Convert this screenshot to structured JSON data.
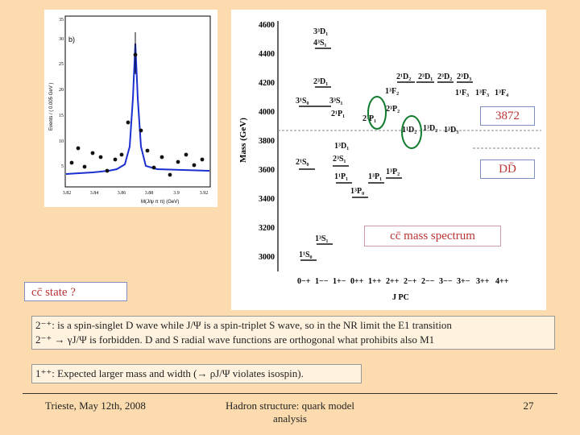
{
  "left_plot": {
    "panel_label": "b)",
    "y_axis_label": "Events / ( 0.005 GeV )",
    "x_axis_label": "M(J/ψ π π) (GeV)",
    "y_ticks": [
      "5",
      "10",
      "15",
      "20",
      "25",
      "30",
      "35"
    ],
    "x_ticks": [
      "3.82",
      "3.84",
      "3.86",
      "3.88",
      "3.9",
      "3.92"
    ]
  },
  "spectrum": {
    "y_axis_label": "Mass (GeV)",
    "y_ticks": [
      "4600",
      "4400",
      "4200",
      "4000",
      "3800",
      "3600",
      "3400",
      "3200",
      "3000"
    ],
    "jpc_label": "J PC",
    "jpc_values": [
      "0−+",
      "1−−",
      "1+−",
      "0++",
      "1++",
      "2++",
      "2−+",
      "2−−",
      "3−−",
      "3+−",
      "3++",
      "4++"
    ],
    "state_labels": [
      "3³D₁",
      "4³S₁",
      "2³D₁",
      "3¹S₀",
      "3³S₁",
      "2¹P₁",
      "2³P₁",
      "2³P₂",
      "1¹D₂",
      "1³D₁",
      "1³D₂",
      "1³D₃",
      "2¹D₂",
      "2³D₁",
      "2³D₂",
      "2³D₃",
      "1¹F₃",
      "1³F₂",
      "1³F₃",
      "1³F₄",
      "2¹S₀",
      "2³S₁",
      "1¹P₁",
      "1³P₀",
      "1³P₁",
      "1³P₂",
      "1³S₁",
      "1¹S₀"
    ],
    "x3872_label": "3872",
    "dd_label": "DD̄",
    "title_box": "cc̄ mass spectrum"
  },
  "question_box": "cc̄ state ?",
  "caption_lines": [
    "2⁻⁺: is a spin-singlet D wave while J/Ψ is a spin-triplet S wave, so in the NR limit the E1 transition",
    "2⁻⁺ → γJ/Ψ is forbidden. D and S radial wave functions are orthogonal what prohibits also M1"
  ],
  "note_text": "1⁺⁺: Expected larger mass and width (→ ρJ/Ψ violates isospin).",
  "footer": {
    "left": "Trieste, May 12th, 2008",
    "center_line1": "Hadron structure: quark model",
    "center_line2": "analysis",
    "page_number": "27"
  }
}
